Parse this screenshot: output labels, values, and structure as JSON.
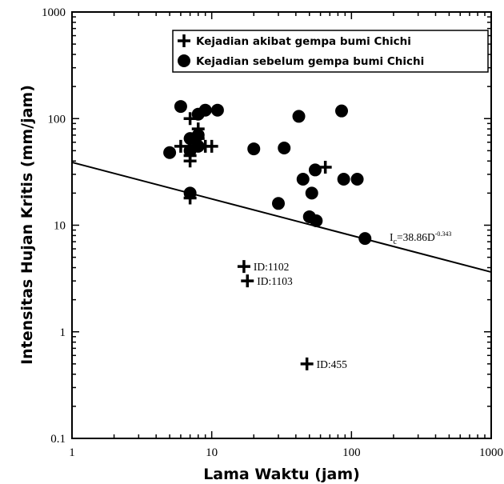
{
  "chart_data": {
    "type": "scatter",
    "xlabel": "Lama Waktu (jam)",
    "ylabel": "Intensitas Hujan Kritis (mm/jam)",
    "x_scale": "log",
    "y_scale": "log",
    "xlim": [
      1,
      1000
    ],
    "ylim": [
      0.1,
      1000
    ],
    "x_ticks": [
      "1",
      "10",
      "100",
      "1000"
    ],
    "y_ticks": [
      "0.1",
      "1",
      "10",
      "100",
      "1000"
    ],
    "grid": false,
    "legend_position": "top-right",
    "series": [
      {
        "name": "Kejadian akibat gempa bumi Chichi",
        "marker": "plus",
        "points": [
          [
            7,
            100
          ],
          [
            6,
            55
          ],
          [
            7,
            45
          ],
          [
            7,
            40
          ],
          [
            7,
            18
          ],
          [
            8,
            80
          ],
          [
            8,
            65
          ],
          [
            9,
            55
          ],
          [
            10,
            55
          ],
          [
            65,
            35
          ],
          [
            17,
            4.1
          ],
          [
            18,
            3
          ],
          [
            48,
            0.5
          ]
        ]
      },
      {
        "name": "Kejadian sebelum gempa bumi Chichi",
        "marker": "circle",
        "points": [
          [
            6,
            130
          ],
          [
            8,
            110
          ],
          [
            9,
            120
          ],
          [
            11,
            120
          ],
          [
            7,
            65
          ],
          [
            8,
            70
          ],
          [
            8,
            55
          ],
          [
            7,
            50
          ],
          [
            5,
            48
          ],
          [
            7,
            20
          ],
          [
            20,
            52
          ],
          [
            33,
            53
          ],
          [
            42,
            105
          ],
          [
            85,
            118
          ],
          [
            55,
            33
          ],
          [
            45,
            27
          ],
          [
            88,
            27
          ],
          [
            110,
            27
          ],
          [
            52,
            20
          ],
          [
            30,
            16
          ],
          [
            50,
            12
          ],
          [
            56,
            11
          ],
          [
            125,
            7.5
          ]
        ]
      }
    ],
    "threshold": {
      "coefficient": 38.86,
      "exponent": -0.343,
      "label_base": "I",
      "label_sub": "c",
      "label_eq": "=38.86D",
      "label_exp": "-0.343"
    },
    "annotations": [
      {
        "text": "ID:1102",
        "x": 17,
        "y": 4.1
      },
      {
        "text": "ID:1103",
        "x": 18,
        "y": 3
      },
      {
        "text": "ID:455",
        "x": 48,
        "y": 0.5
      }
    ]
  }
}
